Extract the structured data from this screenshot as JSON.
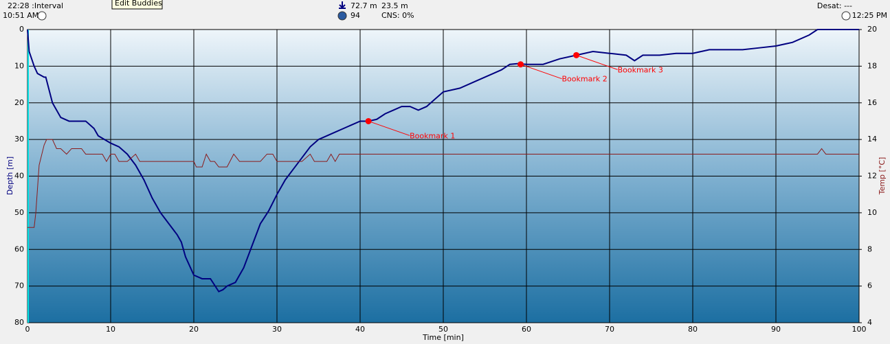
{
  "header": {
    "interval": "22:28 :Interval",
    "start_time": "10:51 AM",
    "tooltip": "Edit Buddies",
    "max_depth": "72.7 m",
    "avg_depth": "23.5 m",
    "gas": "94",
    "cns": "CNS: 0%",
    "desat": "Desat: ---",
    "end_time": "12:25 PM"
  },
  "chart_data": {
    "type": "line",
    "xlabel": "Time [min]",
    "ylabel": "Depth [m]",
    "y2label": "Temp [°C]",
    "xlim": [
      0,
      100
    ],
    "xticks": [
      0,
      10,
      20,
      30,
      40,
      50,
      60,
      70,
      80,
      90,
      100
    ],
    "ylim": [
      0,
      80
    ],
    "y_inverted": true,
    "yticks": [
      0,
      10,
      20,
      30,
      40,
      50,
      60,
      70,
      80
    ],
    "y2lim": [
      4,
      20
    ],
    "y2ticks": [
      4,
      6,
      8,
      10,
      12,
      14,
      16,
      18,
      20
    ],
    "grid": true,
    "series": [
      {
        "name": "Depth",
        "color": "#000080",
        "x": [
          0,
          0.2,
          0.8,
          1.2,
          2,
          2.2,
          3,
          4,
          5,
          7,
          8,
          8.5,
          10,
          11,
          12,
          13,
          14,
          15,
          16,
          17,
          18,
          18.5,
          19,
          20,
          21,
          22,
          23,
          23.5,
          24,
          25,
          26,
          27,
          28,
          29,
          30,
          31,
          32,
          33,
          34,
          35,
          36,
          37,
          38,
          39,
          40,
          41,
          42,
          43,
          44,
          45,
          46,
          47,
          48,
          49,
          50,
          52,
          54,
          56,
          57,
          58,
          59,
          60,
          62,
          64,
          66,
          68,
          70,
          72,
          73,
          74,
          76,
          78,
          80,
          82,
          84,
          86,
          88,
          90,
          92,
          94,
          95,
          100
        ],
        "values": [
          0,
          6,
          10,
          12,
          13,
          13,
          20,
          24,
          25,
          25,
          27,
          29,
          31,
          32,
          34,
          37,
          41,
          46,
          50,
          53,
          56,
          58,
          62,
          67,
          68,
          68,
          71.5,
          71,
          70,
          69,
          65,
          59,
          53,
          49.5,
          45,
          41,
          38,
          35,
          32,
          30,
          29,
          28,
          27,
          26,
          25,
          25,
          24.5,
          23,
          22,
          21,
          21,
          22,
          21,
          19,
          17,
          16,
          14,
          12,
          11,
          9.5,
          9.3,
          9.5,
          9.5,
          8,
          7,
          6,
          6.5,
          7,
          8.5,
          7,
          7,
          6.5,
          6.5,
          5.5,
          5.5,
          5.5,
          5,
          4.5,
          3.5,
          1.5,
          0,
          0
        ]
      },
      {
        "name": "Temp",
        "color": "#8b1a1a",
        "axis": "y2",
        "x": [
          0,
          0.8,
          1,
          1.4,
          2,
          2.3,
          3,
          3.5,
          4,
          4.7,
          5.3,
          6.5,
          7,
          9,
          9.5,
          10,
          10.5,
          11,
          12,
          13,
          13.5,
          20,
          20.3,
          21,
          21.5,
          22,
          22.5,
          23,
          24,
          24.8,
          25.5,
          28,
          28.8,
          29.5,
          30,
          33,
          34,
          34.5,
          36,
          36.5,
          37,
          37.5,
          95,
          95.5,
          96,
          100
        ],
        "values": [
          9.2,
          9.2,
          10,
          12.6,
          13.7,
          14,
          14,
          13.5,
          13.5,
          13.2,
          13.5,
          13.5,
          13.2,
          13.2,
          12.8,
          13.2,
          13.2,
          12.8,
          12.8,
          13.2,
          12.8,
          12.8,
          12.5,
          12.5,
          13.2,
          12.8,
          12.8,
          12.5,
          12.5,
          13.2,
          12.8,
          12.8,
          13.2,
          13.2,
          12.8,
          12.8,
          13.2,
          12.8,
          12.8,
          13.2,
          12.8,
          13.2,
          13.2,
          13.5,
          13.2,
          13.2
        ]
      }
    ],
    "bookmarks": [
      {
        "name": "Bookmark 1",
        "x": 41,
        "depth": 25
      },
      {
        "name": "Bookmark 2",
        "x": 59.3,
        "depth": 9.5
      },
      {
        "name": "Bookmark 3",
        "x": 66,
        "depth": 7
      }
    ],
    "bookmark_color": "#ff0000"
  }
}
